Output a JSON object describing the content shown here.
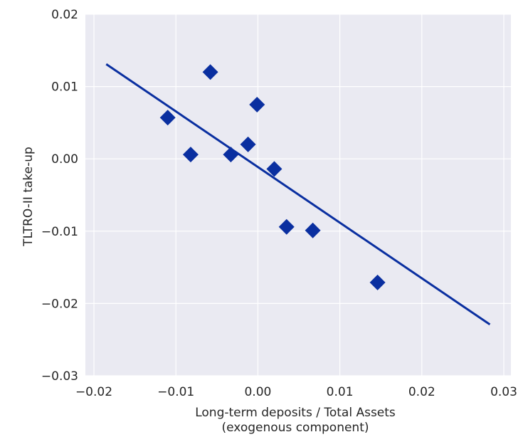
{
  "chart_data": {
    "type": "scatter",
    "title": "",
    "xlabel_line1": "Long-term deposits / Total Assets",
    "xlabel_line2": "(exogenous component)",
    "ylabel": "TLTRO-II take-up",
    "xlim": [
      -0.02,
      0.03
    ],
    "ylim": [
      -0.03,
      0.02
    ],
    "x_ticks": [
      -0.02,
      -0.01,
      0.0,
      0.01,
      0.02,
      0.03
    ],
    "x_tick_labels": [
      "−0.02",
      "−0.01",
      "0.00",
      "0.01",
      "0.02",
      "0.03"
    ],
    "y_ticks": [
      -0.03,
      -0.02,
      -0.01,
      0.0,
      0.01,
      0.02
    ],
    "y_tick_labels": [
      "−0.03",
      "−0.02",
      "−0.01",
      "0.00",
      "0.01",
      "0.02"
    ],
    "grid": true,
    "marker": "diamond",
    "colors": {
      "marker": "#0a2fa0",
      "line": "#0a2fa0",
      "background": "#eaeaf2",
      "grid": "#ffffff",
      "text": "#262626"
    },
    "points": [
      {
        "x": -0.011,
        "y": 0.0057
      },
      {
        "x": -0.0058,
        "y": 0.012
      },
      {
        "x": -0.0082,
        "y": 0.0006
      },
      {
        "x": -0.0033,
        "y": 0.0006
      },
      {
        "x": -0.0012,
        "y": 0.002
      },
      {
        "x": -0.0001,
        "y": 0.0075
      },
      {
        "x": 0.002,
        "y": -0.0014
      },
      {
        "x": 0.0035,
        "y": -0.0094
      },
      {
        "x": 0.0067,
        "y": -0.0099
      },
      {
        "x": 0.0146,
        "y": -0.0171
      }
    ],
    "fit_line": {
      "x": [
        -0.0185,
        0.0283
      ],
      "y": [
        0.0131,
        -0.0229
      ]
    }
  }
}
